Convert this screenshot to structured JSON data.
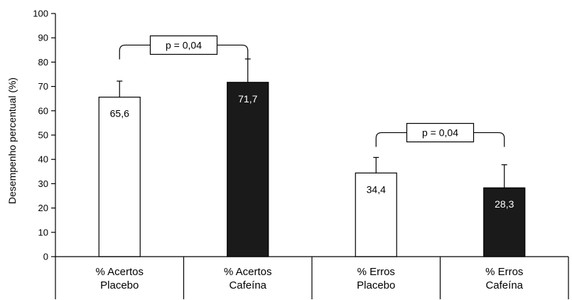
{
  "chart_data": {
    "type": "bar",
    "ylabel": "Desempenho percentual (%)",
    "ylim": [
      0,
      100
    ],
    "yticks": [
      0,
      10,
      20,
      30,
      40,
      50,
      60,
      70,
      80,
      90,
      100
    ],
    "categories": [
      [
        "% Acertos",
        "Placebo"
      ],
      [
        "% Acertos",
        "Cafeína"
      ],
      [
        "% Erros",
        "Placebo"
      ],
      [
        "% Erros",
        "Cafeína"
      ]
    ],
    "values": [
      65.6,
      71.7,
      34.4,
      28.3
    ],
    "value_labels": [
      "65,6",
      "71,7",
      "34,4",
      "28,3"
    ],
    "error_upper": [
      72.2,
      81.3,
      40.8,
      37.8
    ],
    "bar_fill": [
      "#ffffff",
      "#1a1a1a",
      "#ffffff",
      "#1a1a1a"
    ],
    "label_color": [
      "#000000",
      "#ffffff",
      "#000000",
      "#ffffff"
    ],
    "annotations": [
      {
        "text": "p = 0,04",
        "from": 0,
        "to": 1,
        "y": 87
      },
      {
        "text": "p = 0,04",
        "from": 2,
        "to": 3,
        "y": 51
      }
    ]
  }
}
